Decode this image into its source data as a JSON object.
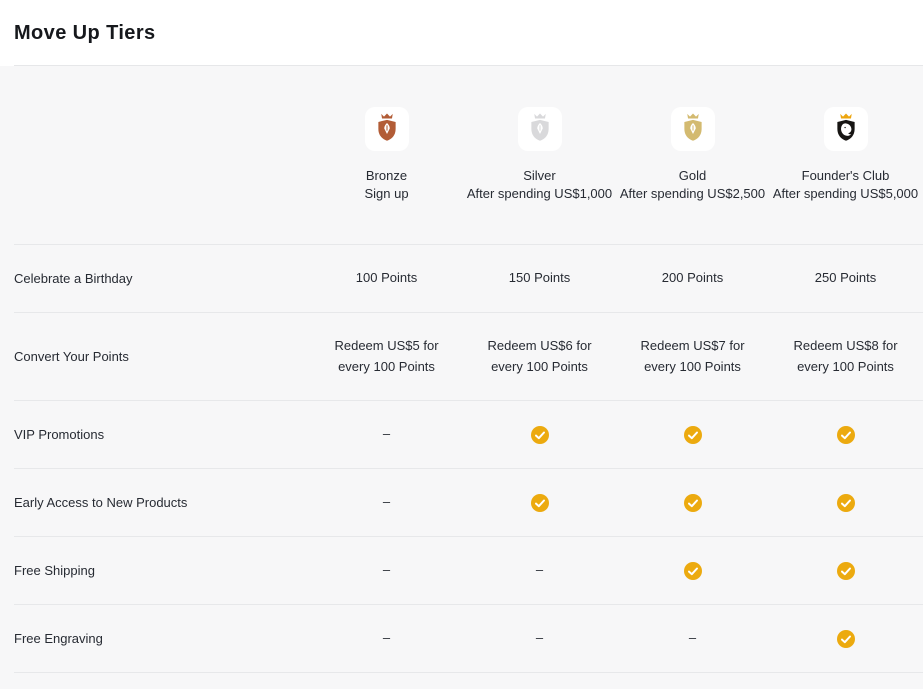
{
  "page": {
    "title": "Move Up Tiers"
  },
  "tiers": [
    {
      "name": "Bronze",
      "condition": "Sign up",
      "icon": "bronze-tier-icon",
      "shield_color": "#b25c36",
      "crown_color": "#b25c36"
    },
    {
      "name": "Silver",
      "condition": "After spending US$1,000",
      "icon": "silver-tier-icon",
      "shield_color": "#d9d9db",
      "crown_color": "#d9d9db"
    },
    {
      "name": "Gold",
      "condition": "After spending US$2,500",
      "icon": "gold-tier-icon",
      "shield_color": "#d3ba70",
      "crown_color": "#d3ba70"
    },
    {
      "name": "Founder's Club",
      "condition": "After spending US$5,000",
      "icon": "founders-club-tier-icon",
      "shield_color": "#171513",
      "crown_color": "#eda50e"
    }
  ],
  "benefits": [
    {
      "label": "Celebrate a Birthday",
      "values": [
        "100 Points",
        "150 Points",
        "200 Points",
        "250 Points"
      ]
    },
    {
      "label": "Convert Your Points",
      "values": [
        "Redeem US$5 for\nevery 100 Points",
        "Redeem US$6 for\nevery 100 Points",
        "Redeem US$7 for\nevery 100 Points",
        "Redeem US$8 for\nevery 100 Points"
      ]
    },
    {
      "label": "VIP Promotions",
      "values": [
        "–",
        "check",
        "check",
        "check"
      ]
    },
    {
      "label": "Early Access to New Products",
      "values": [
        "–",
        "check",
        "check",
        "check"
      ]
    },
    {
      "label": "Free Shipping",
      "values": [
        "–",
        "–",
        "check",
        "check"
      ]
    },
    {
      "label": "Free Engraving",
      "values": [
        "–",
        "–",
        "–",
        "check"
      ]
    }
  ],
  "colors": {
    "check_badge": "#ecaa0f",
    "check_mark": "#ffffff"
  }
}
